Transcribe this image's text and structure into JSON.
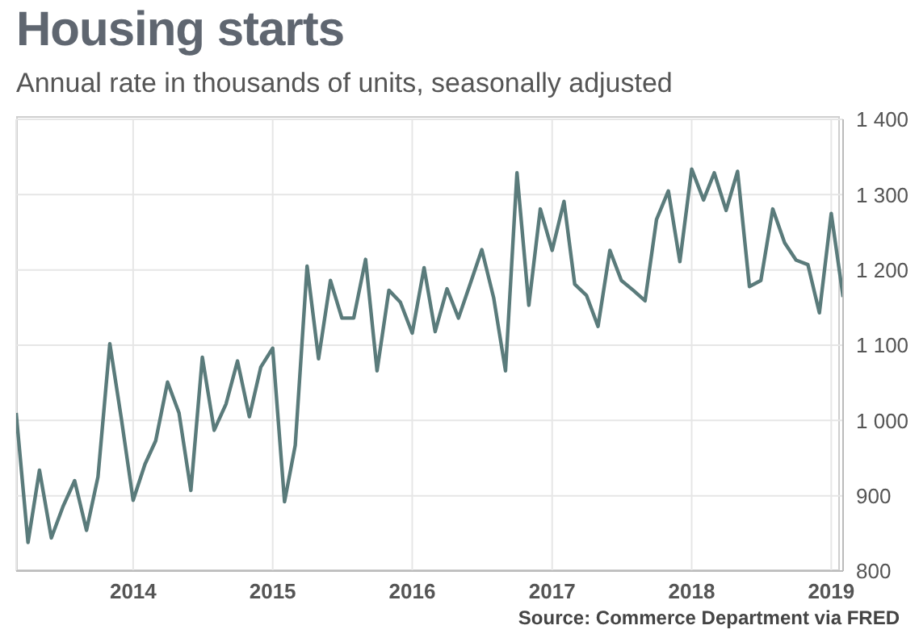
{
  "chart_data": {
    "type": "line",
    "title": "Housing starts",
    "subtitle": "Annual rate in thousands of units, seasonally adjusted",
    "annotations": [
      "Source: Commerce Department via FRED"
    ],
    "x": [
      "2013-03",
      "2013-04",
      "2013-05",
      "2013-06",
      "2013-07",
      "2013-08",
      "2013-09",
      "2013-10",
      "2013-11",
      "2013-12",
      "2014-01",
      "2014-02",
      "2014-03",
      "2014-04",
      "2014-05",
      "2014-06",
      "2014-07",
      "2014-08",
      "2014-09",
      "2014-10",
      "2014-11",
      "2014-12",
      "2015-01",
      "2015-02",
      "2015-03",
      "2015-04",
      "2015-05",
      "2015-06",
      "2015-07",
      "2015-08",
      "2015-09",
      "2015-10",
      "2015-11",
      "2015-12",
      "2016-01",
      "2016-02",
      "2016-03",
      "2016-04",
      "2016-05",
      "2016-06",
      "2016-07",
      "2016-08",
      "2016-09",
      "2016-10",
      "2016-11",
      "2016-12",
      "2017-01",
      "2017-02",
      "2017-03",
      "2017-04",
      "2017-05",
      "2017-06",
      "2017-07",
      "2017-08",
      "2017-09",
      "2017-10",
      "2017-11",
      "2017-12",
      "2018-01",
      "2018-02",
      "2018-03",
      "2018-04",
      "2018-05",
      "2018-06",
      "2018-07",
      "2018-08",
      "2018-09",
      "2018-10",
      "2018-11",
      "2018-12",
      "2019-01",
      "2019-02"
    ],
    "series": [
      {
        "color": "#5a7b7b",
        "values": [
          1010,
          838,
          934,
          844,
          885,
          920,
          854,
          925,
          1102,
          1003,
          894,
          942,
          973,
          1051,
          1010,
          907,
          1084,
          987,
          1022,
          1079,
          1005,
          1071,
          1096,
          892,
          967,
          1205,
          1082,
          1186,
          1136,
          1136,
          1214,
          1066,
          1173,
          1157,
          1116,
          1203,
          1118,
          1175,
          1136,
          1182,
          1227,
          1163,
          1066,
          1329,
          1153,
          1281,
          1226,
          1291,
          1181,
          1166,
          1125,
          1226,
          1186,
          1173,
          1159,
          1267,
          1305,
          1211,
          1334,
          1293,
          1329,
          1279,
          1331,
          1178,
          1186,
          1281,
          1236,
          1213,
          1207,
          1143,
          1275,
          1164
        ]
      }
    ],
    "xlim": [
      "2013-03",
      "2019-02"
    ],
    "xticks": [
      "2014",
      "2015",
      "2016",
      "2017",
      "2018",
      "2019"
    ],
    "ylim": [
      800,
      1400
    ],
    "yticks": [
      800,
      900,
      {
        "value": 1000,
        "label": "1 000"
      },
      {
        "value": 1100,
        "label": "1 100"
      },
      {
        "value": 1200,
        "label": "1 200"
      },
      {
        "value": 1300,
        "label": "1 300"
      },
      {
        "value": 1400,
        "label": "1 400"
      }
    ],
    "grid": true,
    "legend": false,
    "marker": "none",
    "line_style": "solid"
  }
}
